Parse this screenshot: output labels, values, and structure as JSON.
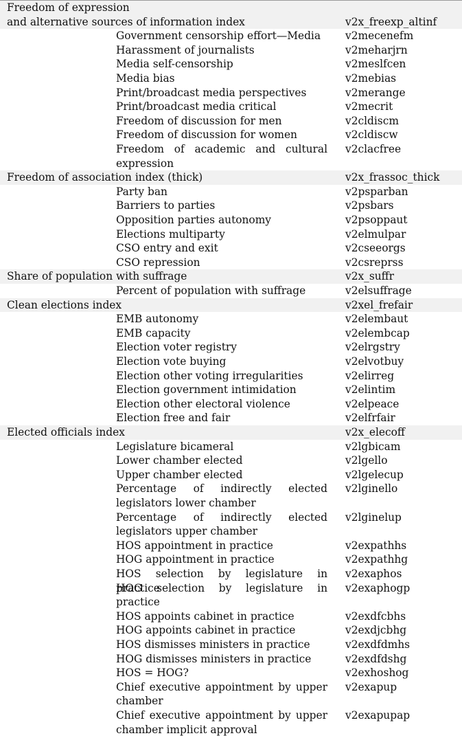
{
  "rows": [
    {
      "kind": "index",
      "shaded": true,
      "lines": 2,
      "label": "Freedom of expression\nand alternative sources of information index",
      "code": "v2x_freexp_altinf"
    },
    {
      "kind": "indicator",
      "lines": 1,
      "label": "Government censorship effort—Media",
      "code": "v2mecenefm"
    },
    {
      "kind": "indicator",
      "lines": 1,
      "label": "Harassment of journalists",
      "code": "v2meharjrn"
    },
    {
      "kind": "indicator",
      "lines": 1,
      "label": "Media self-censorship",
      "code": "v2meslfcen"
    },
    {
      "kind": "indicator",
      "lines": 1,
      "label": "Media bias",
      "code": "v2mebias"
    },
    {
      "kind": "indicator",
      "lines": 1,
      "label": "Print/broadcast media perspectives",
      "code": "v2merange"
    },
    {
      "kind": "indicator",
      "lines": 1,
      "label": "Print/broadcast media critical",
      "code": "v2mecrit"
    },
    {
      "kind": "indicator",
      "lines": 1,
      "label": "Freedom of discussion for men",
      "code": "v2cldiscm"
    },
    {
      "kind": "indicator",
      "lines": 1,
      "label": "Freedom of discussion for women",
      "code": "v2cldiscw"
    },
    {
      "kind": "indicator",
      "lines": 2,
      "label": "Freedom of academic and cultural expression",
      "code": "v2clacfree"
    },
    {
      "kind": "index",
      "shaded": true,
      "lines": 1,
      "label": "Freedom of association index (thick)",
      "code": "v2x_frassoc_thick"
    },
    {
      "kind": "indicator",
      "lines": 1,
      "label": "Party ban",
      "code": "v2psparban"
    },
    {
      "kind": "indicator",
      "lines": 1,
      "label": "Barriers to parties",
      "code": "v2psbars"
    },
    {
      "kind": "indicator",
      "lines": 1,
      "label": "Opposition parties autonomy",
      "code": "v2psoppaut"
    },
    {
      "kind": "indicator",
      "lines": 1,
      "label": "Elections multiparty",
      "code": "v2elmulpar"
    },
    {
      "kind": "indicator",
      "lines": 1,
      "label": "CSO entry and exit",
      "code": "v2cseeorgs"
    },
    {
      "kind": "indicator",
      "lines": 1,
      "label": "CSO repression",
      "code": "v2csreprss"
    },
    {
      "kind": "index",
      "shaded": true,
      "lines": 1,
      "label": "Share of population with suffrage",
      "code": "v2x_suffr"
    },
    {
      "kind": "indicator",
      "lines": 1,
      "label": "Percent of population with suffrage",
      "code": "v2elsuffrage"
    },
    {
      "kind": "index",
      "shaded": true,
      "lines": 1,
      "label": "Clean elections index",
      "code": "v2xel_frefair"
    },
    {
      "kind": "indicator",
      "lines": 1,
      "label": "EMB autonomy",
      "code": "v2elembaut"
    },
    {
      "kind": "indicator",
      "lines": 1,
      "label": "EMB capacity",
      "code": "v2elembcap"
    },
    {
      "kind": "indicator",
      "lines": 1,
      "label": "Election voter registry",
      "code": "v2elrgstry"
    },
    {
      "kind": "indicator",
      "lines": 1,
      "label": "Election vote buying",
      "code": "v2elvotbuy"
    },
    {
      "kind": "indicator",
      "lines": 1,
      "label": "Election other voting irregularities",
      "code": "v2elirreg"
    },
    {
      "kind": "indicator",
      "lines": 1,
      "label": "Election government intimidation",
      "code": "v2elintim"
    },
    {
      "kind": "indicator",
      "lines": 1,
      "label": "Election other electoral violence",
      "code": "v2elpeace"
    },
    {
      "kind": "indicator",
      "lines": 1,
      "label": "Election free and fair",
      "code": "v2elfrfair"
    },
    {
      "kind": "index",
      "shaded": true,
      "lines": 1,
      "label": "Elected officials index",
      "code": "v2x_elecoff"
    },
    {
      "kind": "indicator",
      "lines": 1,
      "label": "Legislature bicameral",
      "code": "v2lgbicam"
    },
    {
      "kind": "indicator",
      "lines": 1,
      "label": "Lower chamber elected",
      "code": "v2lgello"
    },
    {
      "kind": "indicator",
      "lines": 1,
      "label": "Upper chamber elected",
      "code": "v2lgelecup"
    },
    {
      "kind": "indicator",
      "lines": 2,
      "label": "Percentage of indirectly elected legislators lower chamber",
      "code": "v2lginello"
    },
    {
      "kind": "indicator",
      "lines": 2,
      "label": "Percentage of indirectly elected legislators upper chamber",
      "code": "v2lginelup"
    },
    {
      "kind": "indicator",
      "lines": 1,
      "label": "HOS appointment in practice",
      "code": "v2expathhs"
    },
    {
      "kind": "indicator",
      "lines": 1,
      "label": "HOG appointment in practice",
      "code": "v2expathhg"
    },
    {
      "kind": "indicator",
      "lines": 1,
      "label": "HOS selection by legislature in practice",
      "code": "v2exaphos"
    },
    {
      "kind": "indicator",
      "lines": 2,
      "label": "HOG selection by legislature in practice",
      "code": "v2exaphogp"
    },
    {
      "kind": "indicator",
      "lines": 1,
      "label": "HOS appoints cabinet in practice",
      "code": "v2exdfcbhs"
    },
    {
      "kind": "indicator",
      "lines": 1,
      "label": "HOG appoints cabinet in practice",
      "code": "v2exdjcbhg"
    },
    {
      "kind": "indicator",
      "lines": 1,
      "label": "HOS dismisses ministers in practice",
      "code": "v2exdfdmhs"
    },
    {
      "kind": "indicator",
      "lines": 1,
      "label": "HOG dismisses ministers in practice",
      "code": "v2exdfdshg"
    },
    {
      "kind": "indicator",
      "lines": 1,
      "label": "HOS = HOG?",
      "code": "v2exhoshog"
    },
    {
      "kind": "indicator",
      "lines": 2,
      "label": "Chief executive appointment by upper chamber",
      "code": "v2exapup"
    },
    {
      "kind": "indicator",
      "lines": 2,
      "label": "Chief executive appointment by upper chamber implicit approval",
      "code": "v2exapupap"
    }
  ]
}
